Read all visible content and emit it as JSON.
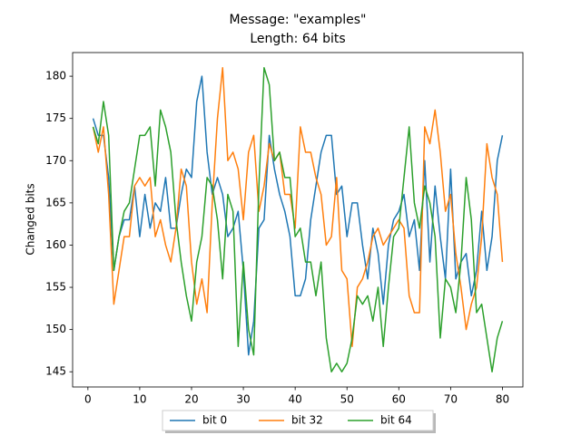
{
  "chart_data": {
    "type": "line",
    "title": "Message: \"examples\"",
    "subtitle": "Length: 64 bits",
    "y_label": "Changed bits",
    "x": [
      1,
      2,
      3,
      4,
      5,
      6,
      7,
      8,
      9,
      10,
      11,
      12,
      13,
      14,
      15,
      16,
      17,
      18,
      19,
      20,
      21,
      22,
      23,
      24,
      25,
      26,
      27,
      28,
      29,
      30,
      31,
      32,
      33,
      34,
      35,
      36,
      37,
      38,
      39,
      40,
      41,
      42,
      43,
      44,
      45,
      46,
      47,
      48,
      49,
      50,
      51,
      52,
      53,
      54,
      55,
      56,
      57,
      58,
      59,
      60,
      61,
      62,
      63,
      64,
      65,
      66,
      67,
      68,
      69,
      70,
      71,
      72,
      73,
      74,
      75,
      76,
      77,
      78,
      79,
      80
    ],
    "series": [
      {
        "name": "bit 0",
        "color": "#1f77b4",
        "values": [
          175,
          173,
          173,
          168,
          157,
          161,
          163,
          163,
          167,
          161,
          166,
          162,
          165,
          164,
          168,
          162,
          162,
          166,
          169,
          168,
          177,
          180,
          171,
          166,
          168,
          166,
          161,
          162,
          164,
          157,
          147,
          151,
          162,
          163,
          173,
          169,
          166,
          164,
          161,
          154,
          154,
          156,
          163,
          167,
          171,
          173,
          173,
          166,
          167,
          161,
          165,
          165,
          160,
          156,
          162,
          159,
          153,
          160,
          163,
          164,
          166,
          161,
          163,
          157,
          170,
          158,
          167,
          161,
          156,
          169,
          156,
          158,
          159,
          154,
          157,
          164,
          157,
          161,
          170,
          173
        ]
      },
      {
        "name": "bit 32",
        "color": "#ff7f0e",
        "values": [
          174,
          171,
          174,
          166,
          153,
          157,
          161,
          161,
          167,
          168,
          167,
          168,
          161,
          163,
          160,
          158,
          162,
          169,
          167,
          158,
          153,
          156,
          152,
          165,
          175,
          181,
          170,
          171,
          169,
          163,
          171,
          173,
          164,
          167,
          172,
          170,
          171,
          166,
          166,
          162,
          174,
          171,
          171,
          168,
          166,
          160,
          161,
          168,
          157,
          156,
          148,
          155,
          156,
          158,
          161,
          162,
          160,
          161,
          162,
          163,
          162,
          154,
          152,
          152,
          174,
          172,
          176,
          171,
          164,
          166,
          159,
          155,
          150,
          153,
          155,
          161,
          172,
          168,
          166,
          158
        ]
      },
      {
        "name": "bit 64",
        "color": "#2ca02c",
        "values": [
          174,
          172,
          177,
          173,
          157,
          161,
          164,
          165,
          169,
          173,
          173,
          174,
          167,
          176,
          174,
          171,
          163,
          158,
          154,
          151,
          158,
          161,
          168,
          167,
          163,
          156,
          166,
          164,
          148,
          158,
          150,
          147,
          167,
          181,
          179,
          170,
          171,
          168,
          168,
          161,
          162,
          158,
          158,
          154,
          158,
          149,
          145,
          146,
          145,
          146,
          149,
          154,
          153,
          154,
          151,
          155,
          148,
          155,
          161,
          162,
          168,
          174,
          165,
          162,
          167,
          165,
          161,
          149,
          156,
          155,
          152,
          158,
          168,
          163,
          152,
          153,
          149,
          145,
          149,
          151
        ]
      }
    ],
    "xlim": [
      -2.95,
      83.95
    ],
    "ylim": [
      143.2,
      182.8
    ],
    "xticks": [
      0,
      10,
      20,
      30,
      40,
      50,
      60,
      70,
      80
    ],
    "yticks": [
      145,
      150,
      155,
      160,
      165,
      170,
      175,
      180
    ],
    "legend": "lower center"
  }
}
